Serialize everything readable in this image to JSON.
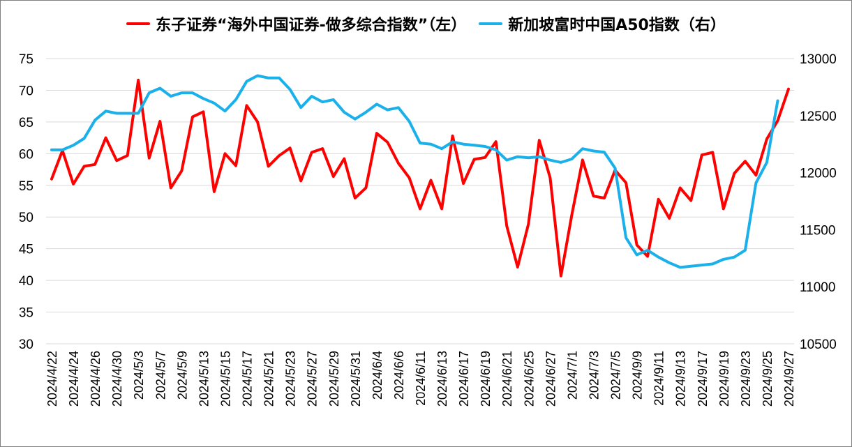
{
  "chart_data": {
    "type": "line",
    "colors": {
      "left_series": "#ff0000",
      "right_series": "#1ab0ea",
      "grid": "#d9d9d9",
      "axis": "#d9d9d9"
    },
    "legend": {
      "placement": "top-center"
    },
    "grid": true,
    "y_left": {
      "range": [
        30,
        75
      ],
      "ticks": [
        "30",
        "35",
        "40",
        "45",
        "50",
        "55",
        "60",
        "65",
        "70",
        "75"
      ]
    },
    "y_right": {
      "range": [
        10500,
        13000
      ],
      "ticks": [
        "10500",
        "11000",
        "11500",
        "12000",
        "12500",
        "13000"
      ]
    },
    "x_tick_labels": [
      "2024/4/22",
      "2024/4/24",
      "2024/4/26",
      "2024/4/30",
      "2024/5/3",
      "2024/5/7",
      "2024/5/9",
      "2024/5/13",
      "2024/5/15",
      "2024/5/17",
      "2024/5/21",
      "2024/5/23",
      "2024/5/27",
      "2024/5/29",
      "2024/5/31",
      "2024/6/4",
      "2024/6/6",
      "2024/6/11",
      "2024/6/13",
      "2024/6/17",
      "2024/6/19",
      "2024/6/21",
      "2024/6/25",
      "2024/6/27",
      "2024/7/1",
      "2024/7/3",
      "2024/7/5",
      "2024/9/9",
      "2024/9/11",
      "2024/9/13",
      "2024/9/17",
      "2024/9/19",
      "2024/9/23",
      "2024/9/25",
      "2024/9/27"
    ],
    "series": [
      {
        "name": "东子证券“海外中国证券-做多综合指数”（左）",
        "axis": "left",
        "values": [
          56.0,
          60.5,
          55.2,
          58.0,
          58.3,
          62.5,
          58.9,
          59.7,
          71.6,
          59.3,
          65.1,
          54.6,
          57.3,
          65.8,
          66.6,
          54.0,
          60.0,
          58.1,
          67.6,
          65.0,
          58.0,
          59.7,
          60.9,
          55.7,
          60.2,
          60.8,
          56.4,
          59.2,
          53.0,
          54.6,
          63.2,
          61.8,
          58.5,
          56.2,
          51.3,
          55.8,
          51.3,
          62.8,
          55.3,
          59.1,
          59.4,
          61.9,
          48.6,
          42.1,
          48.9,
          62.1,
          56.2,
          40.7,
          50.3,
          59.0,
          53.3,
          53.0,
          57.4,
          55.4,
          45.6,
          43.8,
          52.8,
          49.8,
          54.6,
          52.6,
          59.8,
          60.2,
          51.3,
          56.9,
          58.8,
          56.6,
          62.3,
          65.2,
          70.2
        ]
      },
      {
        "name": "新加坡富时中国A50指数（右）",
        "axis": "right",
        "values": [
          12200,
          12200,
          12240,
          12300,
          12460,
          12540,
          12520,
          12520,
          12520,
          12700,
          12740,
          12670,
          12700,
          12700,
          12650,
          12610,
          12540,
          12640,
          12800,
          12850,
          12830,
          12830,
          12730,
          12570,
          12670,
          12620,
          12640,
          12530,
          12470,
          12530,
          12600,
          12550,
          12570,
          12450,
          12260,
          12250,
          12210,
          12270,
          12250,
          12240,
          12230,
          12200,
          12110,
          12140,
          12130,
          12140,
          12110,
          12090,
          12120,
          12210,
          12190,
          12180,
          12040,
          11430,
          11280,
          11320,
          11260,
          11210,
          11170,
          11180,
          11190,
          11200,
          11240,
          11260,
          11320,
          11910,
          12090,
          12630,
          null
        ]
      }
    ]
  }
}
